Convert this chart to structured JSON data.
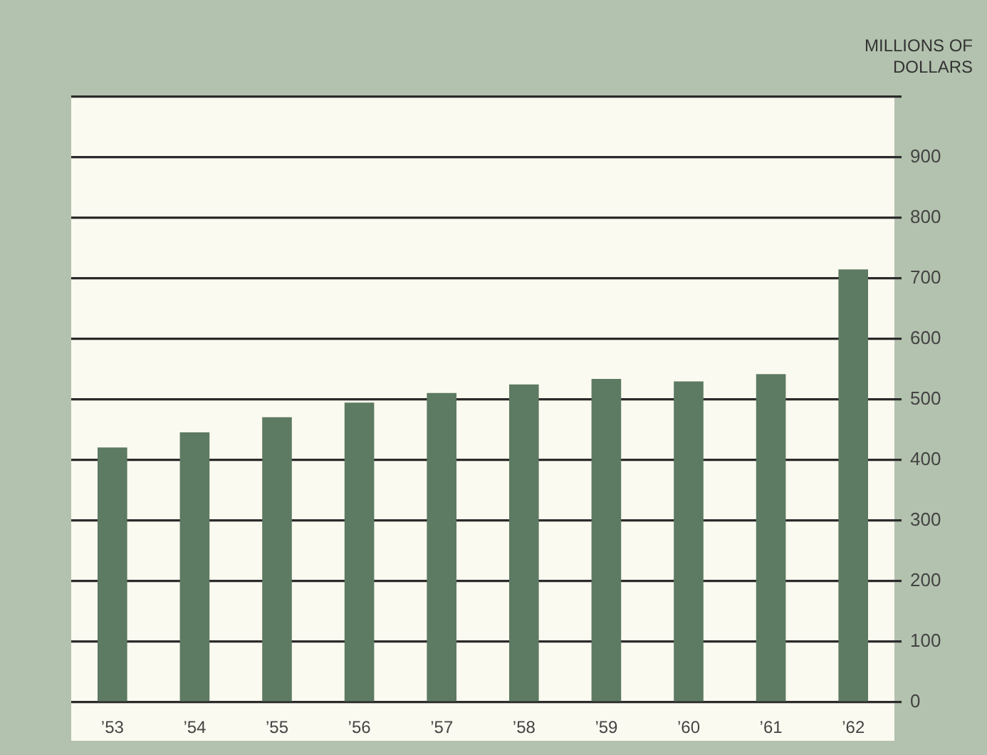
{
  "chart_data": {
    "type": "bar",
    "ylabel": "MILLIONS OF DOLLARS",
    "categories": [
      "’53",
      "’54",
      "’55",
      "’56",
      "’57",
      "’58",
      "’59",
      "’60",
      "’61",
      "’62"
    ],
    "values": [
      421,
      446,
      471,
      495,
      511,
      525,
      534,
      530,
      542,
      715
    ],
    "color": "#5d7a62",
    "ylim": [
      0,
      1000
    ],
    "yticks": [
      0,
      100,
      200,
      300,
      400,
      500,
      600,
      700,
      800,
      900,
      {
        "value": 1000,
        "label": null
      }
    ],
    "grid": "y"
  }
}
